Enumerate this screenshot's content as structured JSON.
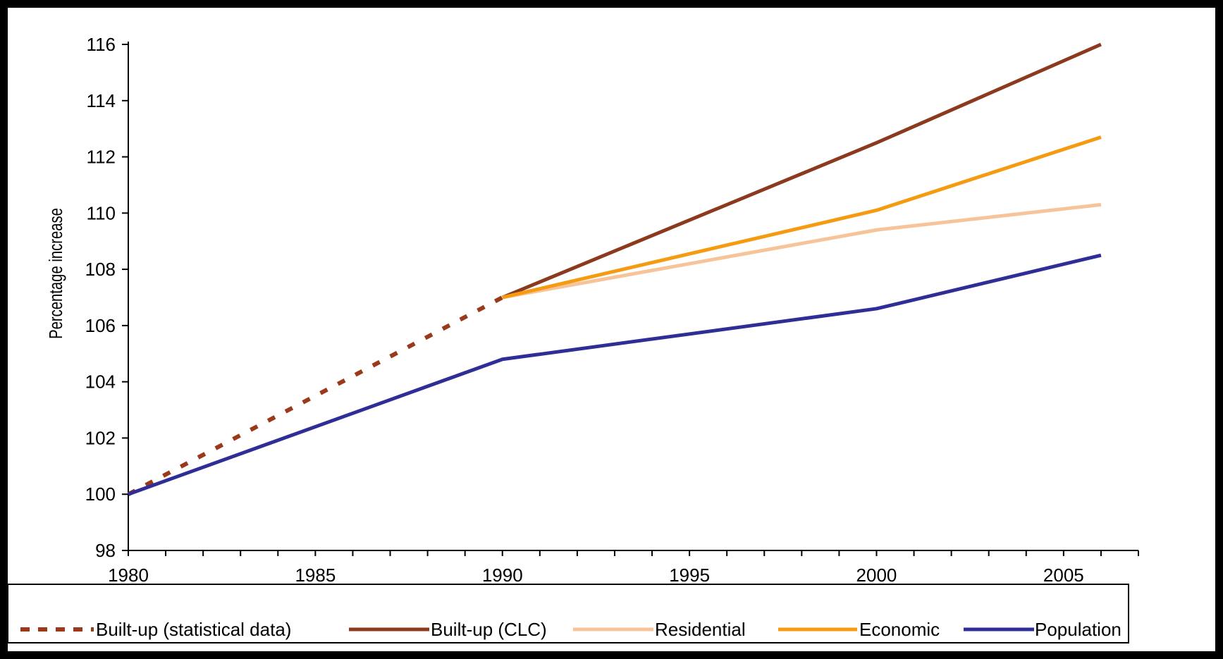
{
  "chart_data": {
    "type": "line",
    "title": "",
    "xlabel": "",
    "ylabel": "Percentage increase",
    "xlim": [
      1980,
      2007
    ],
    "ylim": [
      98,
      116
    ],
    "x_ticks": [
      1980,
      1985,
      1990,
      1995,
      2000,
      2005
    ],
    "y_ticks": [
      98,
      100,
      102,
      104,
      106,
      108,
      110,
      112,
      114,
      116
    ],
    "grid": false,
    "legend_position": "bottom",
    "series": [
      {
        "name": "Built-up (statistical data)",
        "color": "#9B3A1B",
        "style": "dashed",
        "x": [
          1980,
          1990
        ],
        "y": [
          100,
          107
        ]
      },
      {
        "name": "Built-up (CLC)",
        "color": "#8B3A1E",
        "style": "solid",
        "x": [
          1990,
          2000,
          2006
        ],
        "y": [
          107,
          112.5,
          116
        ]
      },
      {
        "name": "Residential",
        "color": "#F7C49A",
        "style": "solid",
        "x": [
          1990,
          2000,
          2006
        ],
        "y": [
          107,
          109.4,
          110.3
        ]
      },
      {
        "name": "Economic",
        "color": "#F59B12",
        "style": "solid",
        "x": [
          1990,
          2000,
          2006
        ],
        "y": [
          107,
          110.1,
          112.7
        ]
      },
      {
        "name": "Population",
        "color": "#2E2E96",
        "style": "solid",
        "x": [
          1980,
          1990,
          2000,
          2006
        ],
        "y": [
          100,
          104.8,
          106.6,
          108.5
        ]
      }
    ]
  }
}
